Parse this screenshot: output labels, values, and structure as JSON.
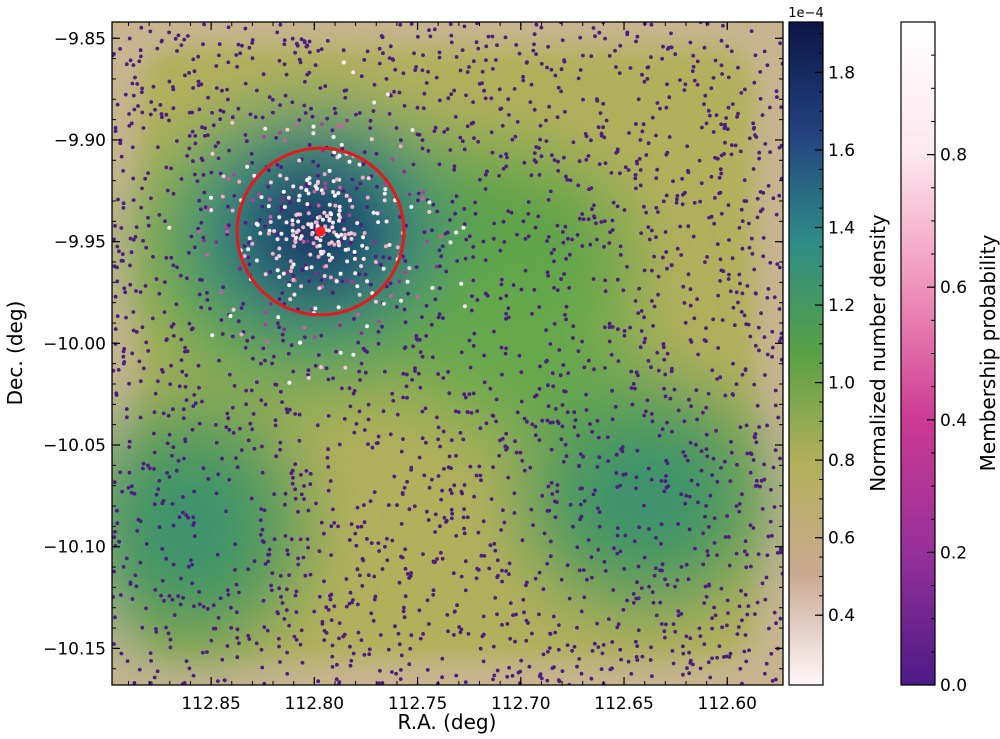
{
  "chart_data": {
    "type": "scatter",
    "overlay": "density-map",
    "xlabel": "R.A. (deg)",
    "ylabel": "Dec. (deg)",
    "xlim": [
      112.898,
      112.573
    ],
    "ylim": [
      -10.168,
      -9.842
    ],
    "x_inverted": true,
    "x_ticks": [
      "112.85",
      "112.80",
      "112.75",
      "112.70",
      "112.65",
      "112.60"
    ],
    "x_tick_values": [
      112.85,
      112.8,
      112.75,
      112.7,
      112.65,
      112.6
    ],
    "y_ticks": [
      "−9.85",
      "−9.90",
      "−9.95",
      "−10.00",
      "−10.05",
      "−10.10",
      "−10.15"
    ],
    "y_tick_values": [
      -9.85,
      -9.9,
      -9.95,
      -10.0,
      -10.05,
      -10.1,
      -10.15
    ],
    "cluster_center": {
      "ra": 112.797,
      "dec": -9.945
    },
    "cluster_radius_deg": 0.041,
    "circle_color": "#e31a1c",
    "center_marker_color": "#ff2020",
    "density_peaks": [
      {
        "ra": 112.8,
        "dec": -9.945,
        "level": 1.9
      },
      {
        "ra": 112.86,
        "dec": -10.09,
        "level": 1.3
      },
      {
        "ra": 112.64,
        "dec": -10.075,
        "level": 1.25
      },
      {
        "ra": 112.72,
        "dec": -9.96,
        "level": 1.15
      }
    ],
    "density_colorbar": {
      "label": "Normalized number density",
      "multiplier": "1e−4",
      "range": [
        0.22,
        1.93
      ],
      "ticks": [
        "0.4",
        "0.6",
        "0.8",
        "1.0",
        "1.2",
        "1.4",
        "1.6",
        "1.8"
      ],
      "tick_values": [
        0.4,
        0.6,
        0.8,
        1.0,
        1.2,
        1.4,
        1.6,
        1.8
      ],
      "colors": [
        "#fff7fb",
        "#c9a991",
        "#b4b05a",
        "#59a045",
        "#2e8d86",
        "#23427e",
        "#0c1546"
      ]
    },
    "membership_colorbar": {
      "label": "Membership probability",
      "range": [
        0.0,
        1.0
      ],
      "ticks": [
        "0.0",
        "0.2",
        "0.4",
        "0.6",
        "0.8"
      ],
      "tick_values": [
        0.0,
        0.2,
        0.4,
        0.6,
        0.8
      ],
      "colors": [
        "#4b1a86",
        "#96309a",
        "#cc3a93",
        "#f093b9",
        "#fde7ee",
        "#ffffff"
      ]
    }
  }
}
